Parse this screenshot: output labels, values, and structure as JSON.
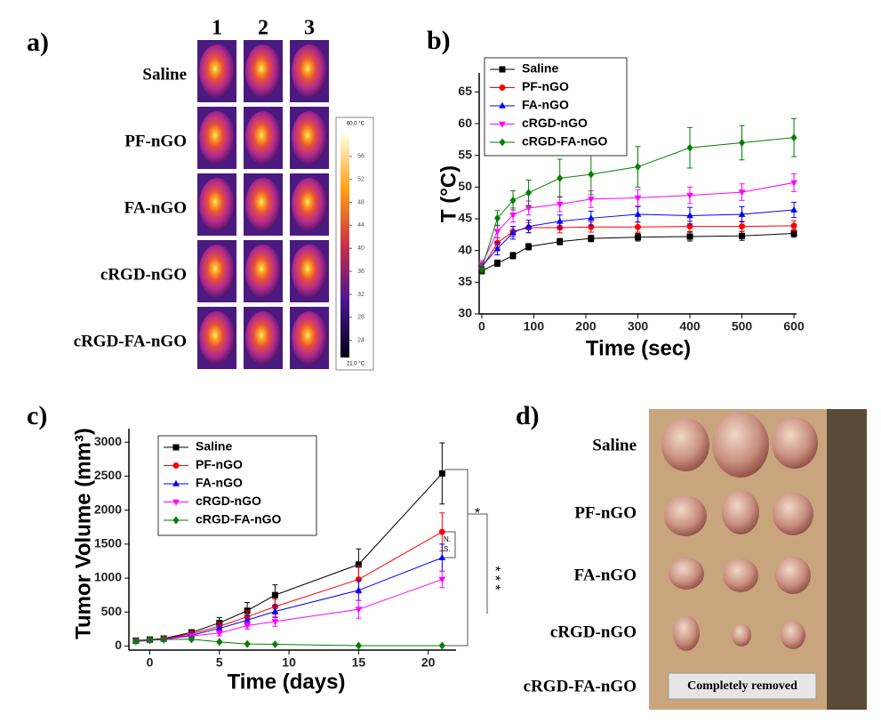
{
  "chart_data": [
    {
      "type": "line",
      "panel_label": "b)",
      "xlabel": "Time (sec)",
      "ylabel": "T (°C)",
      "x": [
        0,
        30,
        60,
        90,
        150,
        210,
        300,
        400,
        500,
        600
      ],
      "series": [
        {
          "name": "Saline",
          "color": "#000000",
          "marker": "square",
          "values": [
            36.8,
            38,
            39.2,
            40.6,
            41.4,
            41.9,
            42.1,
            42.2,
            42.3,
            42.7
          ],
          "errors": [
            0.5,
            0.5,
            0.5,
            0.5,
            0.5,
            0.5,
            0.6,
            0.7,
            0.7,
            0.6
          ]
        },
        {
          "name": "PF-nGO",
          "color": "#ff0000",
          "marker": "circle",
          "values": [
            37.2,
            41.2,
            43,
            43.6,
            43.6,
            43.7,
            43.7,
            43.8,
            43.8,
            43.9
          ],
          "errors": [
            0.6,
            0.8,
            0.8,
            0.8,
            0.8,
            0.8,
            0.8,
            0.8,
            0.8,
            0.8
          ]
        },
        {
          "name": "FA-nGO",
          "color": "#0000ff",
          "marker": "triangle",
          "values": [
            37.5,
            40.3,
            42.8,
            43.8,
            44.6,
            45.1,
            45.7,
            45.5,
            45.7,
            46.4
          ],
          "errors": [
            0.6,
            1,
            1,
            1,
            1,
            1.1,
            1.2,
            1.3,
            1.2,
            1.2
          ]
        },
        {
          "name": "cRGD-nGO",
          "color": "#ff00ff",
          "marker": "triangle-down",
          "values": [
            37.8,
            43,
            45.6,
            46.7,
            47.3,
            48.1,
            48.3,
            48.7,
            49.2,
            50.7
          ],
          "errors": [
            0.6,
            1,
            1.1,
            1.1,
            1.2,
            1.3,
            1.3,
            1.3,
            1.3,
            1.4
          ]
        },
        {
          "name": "cRGD-FA-nGO",
          "color": "#008000",
          "marker": "diamond",
          "values": [
            37.1,
            45.1,
            47.9,
            49.1,
            51.4,
            52,
            53.2,
            56.2,
            57,
            57.8
          ],
          "errors": [
            0.8,
            1.2,
            1.5,
            2,
            3,
            3.2,
            3.2,
            3.2,
            2.7,
            3
          ]
        }
      ],
      "xlim": [
        -5,
        605
      ],
      "xticks": [
        0,
        100,
        200,
        300,
        400,
        500,
        600
      ],
      "ylim": [
        30,
        68
      ],
      "yticks": [
        30,
        35,
        40,
        45,
        50,
        55,
        60,
        65
      ],
      "legend": "upper-left"
    },
    {
      "type": "line",
      "panel_label": "c)",
      "xlabel": "Time (days)",
      "ylabel": "Tumor Volume (mm³)",
      "x": [
        -1,
        0,
        1,
        3,
        5,
        7,
        9,
        15,
        21
      ],
      "series": [
        {
          "name": "Saline",
          "color": "#000000",
          "marker": "square",
          "values": [
            80,
            95,
            110,
            200,
            340,
            520,
            750,
            1200,
            2540
          ],
          "errors": [
            20,
            20,
            25,
            40,
            80,
            120,
            150,
            230,
            450
          ]
        },
        {
          "name": "PF-nGO",
          "color": "#ff0000",
          "marker": "circle",
          "values": [
            75,
            90,
            105,
            180,
            290,
            430,
            580,
            980,
            1680
          ],
          "errors": [
            20,
            20,
            20,
            30,
            60,
            90,
            110,
            200,
            280
          ]
        },
        {
          "name": "FA-nGO",
          "color": "#0000ff",
          "marker": "triangle",
          "values": [
            70,
            85,
            100,
            160,
            260,
            380,
            510,
            820,
            1300
          ],
          "errors": [
            20,
            20,
            20,
            30,
            50,
            70,
            90,
            150,
            200
          ]
        },
        {
          "name": "cRGD-nGO",
          "color": "#ff00ff",
          "marker": "triangle-down",
          "values": [
            65,
            80,
            95,
            150,
            190,
            300,
            360,
            540,
            980
          ],
          "errors": [
            20,
            20,
            20,
            30,
            40,
            50,
            70,
            130,
            120
          ]
        },
        {
          "name": "cRGD-FA-nGO",
          "color": "#008000",
          "marker": "diamond",
          "values": [
            70,
            90,
            95,
            100,
            60,
            30,
            25,
            5,
            5
          ],
          "errors": [
            20,
            20,
            20,
            20,
            15,
            10,
            10,
            5,
            5
          ]
        }
      ],
      "xlim": [
        -1.5,
        22
      ],
      "xticks": [
        0,
        5,
        10,
        15,
        20
      ],
      "ylim": [
        -60,
        3200
      ],
      "yticks": [
        0,
        500,
        1000,
        1500,
        2000,
        2500,
        3000
      ],
      "legend": "upper-left",
      "annotations": [
        "*",
        "N.",
        "S.",
        "* * *"
      ]
    }
  ],
  "panel_a": {
    "label": "a)",
    "columns": [
      "1",
      "2",
      "3"
    ],
    "rows": [
      "Saline",
      "PF-nGO",
      "FA-nGO",
      "cRGD-nGO",
      "cRGD-FA-nGO"
    ],
    "colorbar": {
      "lim": [
        21,
        60
      ],
      "ticks": [
        24,
        28,
        32,
        36,
        40,
        44,
        48,
        52,
        56
      ],
      "max_label": "60.0 °C",
      "min_label": "21.0 °C"
    }
  },
  "panel_d": {
    "label": "d)",
    "rows": [
      "Saline",
      "PF-nGO",
      "FA-nGO",
      "cRGD-nGO",
      "cRGD-FA-nGO"
    ],
    "note": "Completely removed"
  }
}
